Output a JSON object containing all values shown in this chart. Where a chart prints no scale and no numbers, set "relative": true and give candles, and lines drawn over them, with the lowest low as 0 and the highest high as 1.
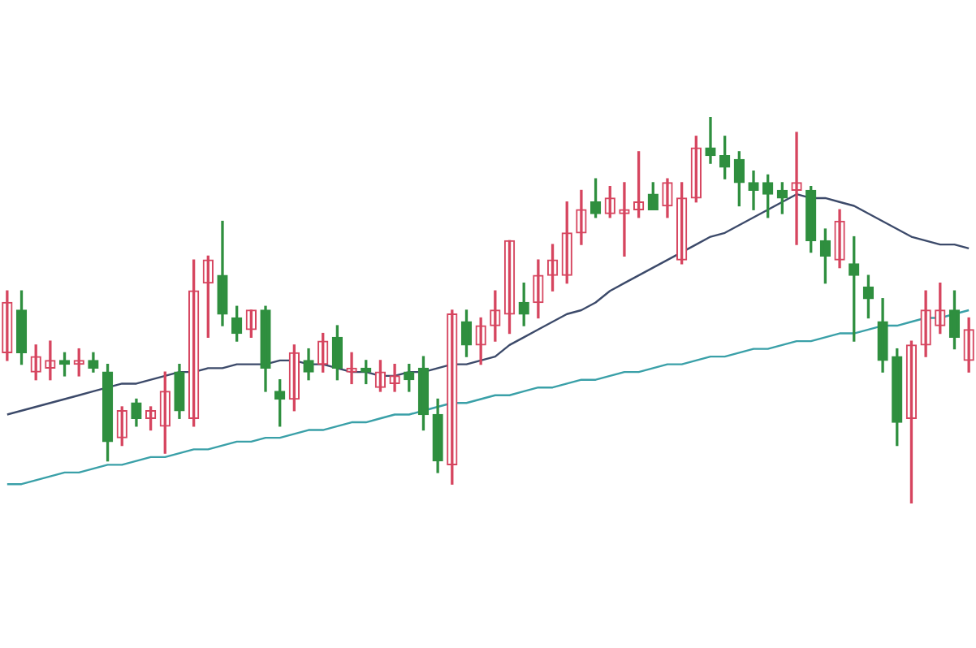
{
  "chart_data": {
    "type": "candlestick",
    "relative": true,
    "categories": [
      null,
      null,
      null,
      null,
      null,
      null,
      null,
      null,
      null,
      null,
      null,
      null,
      null,
      null,
      null,
      null,
      null,
      null,
      null,
      null,
      null,
      null,
      null,
      null,
      null,
      null,
      null,
      null,
      null,
      null,
      null,
      null,
      null,
      null,
      null,
      null,
      null,
      null,
      null,
      null,
      null,
      null,
      null,
      null,
      null,
      null,
      null,
      null,
      null,
      null,
      null,
      null,
      null,
      null,
      null,
      null,
      null,
      null,
      null,
      null,
      null,
      null,
      null,
      null,
      null,
      null,
      null,
      null
    ],
    "ohlc": [
      [
        0.39,
        0.55,
        0.37,
        0.52
      ],
      [
        0.5,
        0.55,
        0.36,
        0.39
      ],
      [
        0.34,
        0.41,
        0.32,
        0.38
      ],
      [
        0.35,
        0.42,
        0.32,
        0.37
      ],
      [
        0.37,
        0.39,
        0.33,
        0.36
      ],
      [
        0.36,
        0.4,
        0.33,
        0.37
      ],
      [
        0.37,
        0.39,
        0.34,
        0.35
      ],
      [
        0.34,
        0.36,
        0.11,
        0.16
      ],
      [
        0.17,
        0.25,
        0.15,
        0.24
      ],
      [
        0.26,
        0.27,
        0.2,
        0.22
      ],
      [
        0.22,
        0.25,
        0.19,
        0.24
      ],
      [
        0.2,
        0.34,
        0.13,
        0.29
      ],
      [
        0.34,
        0.36,
        0.22,
        0.24
      ],
      [
        0.22,
        0.63,
        0.2,
        0.55
      ],
      [
        0.57,
        0.64,
        0.43,
        0.63
      ],
      [
        0.59,
        0.73,
        0.46,
        0.49
      ],
      [
        0.48,
        0.51,
        0.42,
        0.44
      ],
      [
        0.45,
        0.5,
        0.43,
        0.5
      ],
      [
        0.5,
        0.51,
        0.29,
        0.35
      ],
      [
        0.29,
        0.32,
        0.2,
        0.27
      ],
      [
        0.27,
        0.41,
        0.24,
        0.39
      ],
      [
        0.37,
        0.4,
        0.32,
        0.34
      ],
      [
        0.36,
        0.44,
        0.34,
        0.42
      ],
      [
        0.43,
        0.46,
        0.32,
        0.35
      ],
      [
        0.34,
        0.39,
        0.31,
        0.35
      ],
      [
        0.35,
        0.37,
        0.31,
        0.34
      ],
      [
        0.3,
        0.37,
        0.29,
        0.34
      ],
      [
        0.31,
        0.36,
        0.29,
        0.33
      ],
      [
        0.34,
        0.36,
        0.29,
        0.32
      ],
      [
        0.35,
        0.38,
        0.19,
        0.23
      ],
      [
        0.23,
        0.27,
        0.08,
        0.11
      ],
      [
        0.1,
        0.5,
        0.05,
        0.49
      ],
      [
        0.47,
        0.5,
        0.38,
        0.41
      ],
      [
        0.41,
        0.48,
        0.36,
        0.46
      ],
      [
        0.46,
        0.55,
        0.42,
        0.5
      ],
      [
        0.49,
        0.68,
        0.44,
        0.68
      ],
      [
        0.52,
        0.57,
        0.46,
        0.49
      ],
      [
        0.52,
        0.63,
        0.48,
        0.59
      ],
      [
        0.59,
        0.67,
        0.55,
        0.63
      ],
      [
        0.59,
        0.78,
        0.57,
        0.7
      ],
      [
        0.7,
        0.81,
        0.67,
        0.76
      ],
      [
        0.78,
        0.84,
        0.74,
        0.75
      ],
      [
        0.75,
        0.82,
        0.74,
        0.79
      ],
      [
        0.75,
        0.83,
        0.64,
        0.76
      ],
      [
        0.76,
        0.91,
        0.74,
        0.78
      ],
      [
        0.8,
        0.83,
        0.76,
        0.76
      ],
      [
        0.77,
        0.84,
        0.74,
        0.83
      ],
      [
        0.63,
        0.83,
        0.62,
        0.79
      ],
      [
        0.79,
        0.95,
        0.78,
        0.92
      ],
      [
        0.92,
        1,
        0.88,
        0.9
      ],
      [
        0.9,
        0.95,
        0.84,
        0.87
      ],
      [
        0.89,
        0.91,
        0.77,
        0.83
      ],
      [
        0.83,
        0.86,
        0.76,
        0.81
      ],
      [
        0.83,
        0.85,
        0.74,
        0.8
      ],
      [
        0.81,
        0.83,
        0.75,
        0.79
      ],
      [
        0.81,
        0.96,
        0.67,
        0.83
      ],
      [
        0.81,
        0.82,
        0.65,
        0.68
      ],
      [
        0.68,
        0.71,
        0.57,
        0.64
      ],
      [
        0.63,
        0.76,
        0.61,
        0.73
      ],
      [
        0.62,
        0.69,
        0.42,
        0.59
      ],
      [
        0.56,
        0.59,
        0.48,
        0.53
      ],
      [
        0.47,
        0.53,
        0.34,
        0.37
      ],
      [
        0.38,
        0.4,
        0.15,
        0.21
      ],
      [
        0.22,
        0.42,
        0,
        0.41
      ],
      [
        0.41,
        0.55,
        0.38,
        0.5
      ],
      [
        0.46,
        0.57,
        0.44,
        0.5
      ],
      [
        0.5,
        0.55,
        0.4,
        0.43
      ],
      [
        0.37,
        0.48,
        0.34,
        0.45
      ]
    ],
    "colors": [
      "#d6455f",
      "#2f8f3f",
      "#d6455f",
      "#d6455f",
      "#2f8f3f",
      "#d6455f",
      "#2f8f3f",
      "#2f8f3f",
      "#d6455f",
      "#2f8f3f",
      "#d6455f",
      "#d6455f",
      "#2f8f3f",
      "#d6455f",
      "#d6455f",
      "#2f8f3f",
      "#2f8f3f",
      "#d6455f",
      "#2f8f3f",
      "#2f8f3f",
      "#d6455f",
      "#2f8f3f",
      "#d6455f",
      "#2f8f3f",
      "#d6455f",
      "#2f8f3f",
      "#d6455f",
      "#d6455f",
      "#2f8f3f",
      "#2f8f3f",
      "#2f8f3f",
      "#d6455f",
      "#2f8f3f",
      "#d6455f",
      "#d6455f",
      "#d6455f",
      "#2f8f3f",
      "#d6455f",
      "#d6455f",
      "#d6455f",
      "#d6455f",
      "#2f8f3f",
      "#d6455f",
      "#d6455f",
      "#d6455f",
      "#2f8f3f",
      "#d6455f",
      "#d6455f",
      "#d6455f",
      "#2f8f3f",
      "#2f8f3f",
      "#2f8f3f",
      "#2f8f3f",
      "#2f8f3f",
      "#2f8f3f",
      "#d6455f",
      "#2f8f3f",
      "#2f8f3f",
      "#d6455f",
      "#2f8f3f",
      "#2f8f3f",
      "#2f8f3f",
      "#2f8f3f",
      "#d6455f",
      "#d6455f",
      "#d6455f",
      "#2f8f3f",
      "#d6455f"
    ],
    "series": [
      {
        "type": "line",
        "color": "#3aa0a8",
        "values": [
          0.05,
          0.05,
          0.06,
          0.07,
          0.08,
          0.08,
          0.09,
          0.1,
          0.1,
          0.11,
          0.12,
          0.12,
          0.13,
          0.14,
          0.14,
          0.15,
          0.16,
          0.16,
          0.17,
          0.17,
          0.18,
          0.19,
          0.19,
          0.2,
          0.21,
          0.21,
          0.22,
          0.23,
          0.23,
          0.24,
          0.25,
          0.26,
          0.26,
          0.27,
          0.28,
          0.28,
          0.29,
          0.3,
          0.3,
          0.31,
          0.32,
          0.32,
          0.33,
          0.34,
          0.34,
          0.35,
          0.36,
          0.36,
          0.37,
          0.38,
          0.38,
          0.39,
          0.4,
          0.4,
          0.41,
          0.42,
          0.42,
          0.43,
          0.44,
          0.44,
          0.45,
          0.46,
          0.46,
          0.47,
          0.48,
          0.48,
          0.49,
          0.5
        ]
      },
      {
        "type": "line",
        "color": "#3c4a6a",
        "values": [
          0.23,
          0.24,
          0.25,
          0.26,
          0.27,
          0.28,
          0.29,
          0.3,
          0.31,
          0.31,
          0.32,
          0.33,
          0.34,
          0.34,
          0.35,
          0.35,
          0.36,
          0.36,
          0.36,
          0.37,
          0.37,
          0.36,
          0.36,
          0.35,
          0.34,
          0.34,
          0.33,
          0.33,
          0.34,
          0.34,
          0.35,
          0.36,
          0.36,
          0.37,
          0.38,
          0.41,
          0.43,
          0.45,
          0.47,
          0.49,
          0.5,
          0.52,
          0.55,
          0.57,
          0.59,
          0.61,
          0.63,
          0.65,
          0.67,
          0.69,
          0.7,
          0.72,
          0.74,
          0.76,
          0.78,
          0.8,
          0.79,
          0.79,
          0.78,
          0.77,
          0.75,
          0.73,
          0.71,
          0.69,
          0.68,
          0.67,
          0.67,
          0.66
        ]
      }
    ]
  }
}
